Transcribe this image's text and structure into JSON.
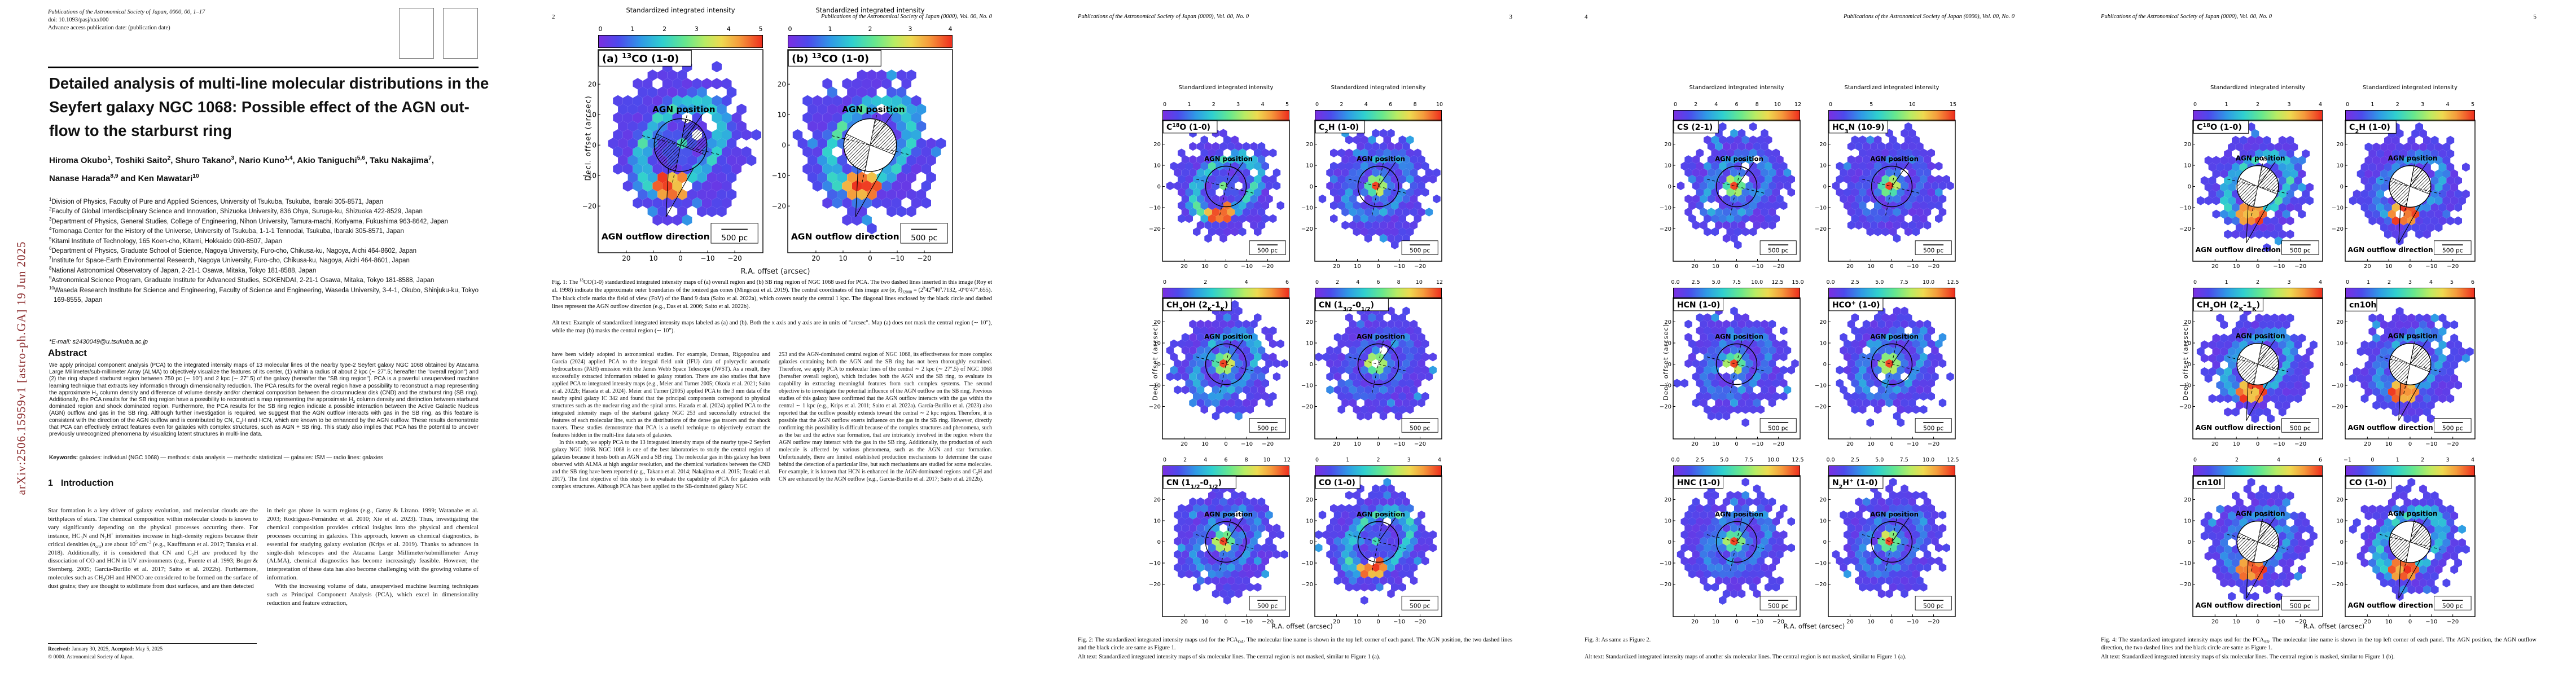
{
  "arxiv_stamp": {
    "text": "arXiv:2506.15959v1  [astro-ph.GA]  19 Jun 2025",
    "color": "#8a2a2b"
  },
  "running_head": "Publications of the Astronomical Society of Japan (0000), Vol. 00, No. 0",
  "colors": {
    "map_purple": "#7a2fe2",
    "map_cyan": "#2fd0cf",
    "map_green": "#67e88d",
    "map_red": "#ee2e1e",
    "stamp_red": "#8a2a2b"
  },
  "figures_common": {
    "cb_title": "Standardized integrated intensity",
    "xlabel": "R.A. offset (arcsec)",
    "ylabel": "Decl. offset (arcsec)",
    "agn_label": "AGN position",
    "outflow_label": "AGN outflow direction",
    "scalebar_label": "500 pc",
    "xticks": [
      "20",
      "10",
      "0",
      "−10",
      "−20"
    ],
    "yticks": [
      "20",
      "10",
      "0",
      "−10",
      "−20"
    ]
  },
  "page1": {
    "header_lines": [
      "Publications of the Astronomical Society of Japan, 0000, 00, 1–17",
      "doi: 10.1093/pasj/xxx000",
      "Advance access publication date: (publication date)"
    ],
    "title_lines": [
      "Detailed analysis of multi-line molecular distributions in the",
      "Seyfert galaxy NGC 1068:  Possible effect of the AGN out-",
      "flow to the starburst ring"
    ],
    "authors_lines": [
      "Hiroma Okubo^1^, Toshiki Saito^2^, Shuro Takano^3^, Nario Kuno^1,4^, Akio Taniguchi^5,6^, Taku Nakajima^7^,",
      "Nanase Harada^8,9^ and Ken Mawatari^10^"
    ],
    "affiliations": [
      "^1^Division of Physics, Faculty of Pure and Applied Sciences, University of Tsukuba, Tsukuba, Ibaraki 305-8571, Japan",
      "^2^Faculty of Global Interdisciplinary Science and Innovation, Shizuoka University, 836 Ohya, Suruga-ku, Shizuoka 422-8529, Japan",
      "^3^Department of Physics, General Studies, College of Engineering, Nihon University, Tamura-machi, Koriyama, Fukushima 963-8642, Japan",
      "^4^Tomonaga Center for the History of the Universe, University of Tsukuba, 1-1-1 Tennodai, Tsukuba, Ibaraki 305-8571, Japan",
      "^5^Kitami Institute of Technology, 165 Koen-cho, Kitami, Hokkaido 090-8507, Japan",
      "^6^Department of Physics, Graduate School of Science, Nagoya University, Furo-cho, Chikusa-ku, Nagoya, Aichi 464-8602, Japan",
      "^7^Institute for Space-Earth Environmental Research, Nagoya University, Furo-cho, Chikusa-ku, Nagoya, Aichi 464-8601, Japan",
      "^8^National Astronomical Observatory of Japan, 2-21-1 Osawa, Mitaka, Tokyo 181-8588, Japan",
      "^9^Astronomical Science Program, Graduate Institute for Advanced Studies, SOKENDAI, 2-21-1 Osawa, Mitaka, Tokyo 181-8588, Japan",
      "^10^Waseda Research Institute for Science and Engineering, Faculty of Science and Engineering, Waseda University, 3-4-1, Okubo, Shinjuku-ku, Tokyo 169-8555, Japan"
    ],
    "email": "*E-mail: s2430049@u.tsukuba.ac.jp",
    "abstract_title": "Abstract",
    "abstract": "We apply principal component analysis (PCA) to the integrated intensity maps of 13 molecular lines of the nearby type-2 Seyfert galaxy NGC 1068 obtained by Atacama Large Millimeter/sub-millimeter Array (ALMA) to objectively visualize the features of its center, (1) within a radius of about 2 kpc (∼ 27″.5; hereafter the \"overall region\") and (2) the ring shaped starburst region between 750 pc (∼ 10″) and 2 kpc (∼ 27″.5) of the galaxy (hereafter the \"SB ring region\"). PCA is a powerful unsupervised machine learning technique that extracts key information through dimensionality reduction. The PCA results for the overall region have a possibility to reconstruct a map representing the approximate H~2~ column density and difference of volume density and/or chemical composition between the circumnuclear disk (CND) and the starburst ring (SB ring). Additionally, the PCA results for the SB ring region have a possibility to reconstruct a map representing the approximate H~2~ column density and distinction between starburst dominated region and shock dominated region. Furthermore, the PCA results for the SB ring region indicate a possible interaction between the Active Galactic Nucleus (AGN) outflow and gas in the SB ring. Although further investigation is required, we suggest that the AGN outflow interacts with gas in the SB ring, as this feature is consistent with the direction of the AGN outflow and is contributed by CN, C~2~H and HCN, which are known to be enhanced by the AGN outflow. These results demonstrate that PCA can effectively extract features even for galaxies with complex structures, such as AGN + SB ring. This study also implies that PCA has the potential to uncover previously unrecognized phenomena by visualizing latent structures in multi-line data.",
    "keywords": "*Keywords:* galaxies: individual (NGC 1068) — methods: data analysis — methods: statistical — galaxies: ISM — radio lines: galaxies",
    "intro_number": "1",
    "intro_title": "Introduction",
    "intro_left": [
      "Star formation is a key driver of galaxy evolution, and molecular clouds are the birthplaces of stars.  The chemical composition within molecular clouds is known to vary significantly depending on the physical processes occurring there.  For instance, HC~3~N and N~2~H^+^ intensities increase in high-density regions because their critical densities (%n%~crit~) are about 10^5^ cm^−3^ (e.g., Kauffmann et al. 2017; Tanaka et al. 2018).  Additionally, it is considered that CN and C~2~H are produced by the dissociation of CO and HCN in UV environments (e.g., Fuente et al. 1993; Boger & Sternberg. 2005; García-Burillo et al. 2017; Saito et al. 2022b).  Furthermore, molecules such as CH~3~OH and HNCO are considered to be formed on the surface of dust grains; they are thought to sublimate from dust surfaces, and are then detected"
    ],
    "intro_right": [
      "in their gas phase in warm regions (e.g., Garay & Lizano. 1999; Watanabe et al. 2003; Rodríguez-Fernández et al. 2010; Xie et al. 2023).  Thus, investigating the chemical composition provides critical insights into the physical and chemical processes occurring in galaxies.  This approach, known as chemical diagnostics, is essential for studying galaxy evolution (Krips et al. 2019).  Thanks to advances in single-dish telescopes and the Atacama Large Millimeter/submillimeter Array (ALMA), chemical diagnostics has become increasingly feasible.  However, the interpretation of these data has also become challenging with the growing volume of information.",
      "With the increasing volume of data, unsupervised machine learning techniques such as Principal Component Analysis (PCA), which excel in dimensionality reduction and feature extraction,"
    ],
    "footer_received": "*Received:* January 30, 2025, *Accepted:* May 5, 2025",
    "footer_copyright": "© 0000. Astronomical Society of Japan."
  },
  "page2": {
    "folio": "2",
    "caption": "Fig. 1: The ^13^CO(1-0) standardized integrated intensity maps of (a) overall region and (b) SB ring region of NGC 1068 used for PCA. The two dashed lines inserted in this image (Roy et al. 1998) indicate the approximate outer boundaries of the ionized gas cones (Mingozzi et al. 2019). The central coordinates of this image are (%α%, %δ%)~J2000~ = (2^h^42^m^40^s^.7132, -0°0′47″.655). The black circle marks the field of view (FoV) of the Band 9 data (Saito et al. 2022a), which covers nearly the central 1 kpc. The diagonal lines enclosed by the black circle and dashed lines represent the AGN outflow direction (e.g., Das et al.  2006; Saito et al. 2022b).",
    "caption_alt": "Alt text: Example of standardized integrated intensity maps labeled as (a) and (b). Both the x axis and y axis are in units of \"arcsec\". Map (a) does not mask the central region (∼ 10″), while the map (b) masks the central region (∼ 10″).",
    "body_left": [
      "have been widely adopted in astronomical studies.  For example, Donnan, Rigopoulou and García (2024) applied PCA to the integral field unit (IFU) data of polycyclic aromatic hydrocarbons (PAH) emission with the James Webb Space Telescope (JWST).  As a result, they successfully extracted information related to galaxy rotation.  There are also studies that have applied PCA to integrated intensity maps (e.g., Meier and Turner 2005; Okoda et al. 2021; Saito et al. 2022b; Harada et al. 2024).  Meier and Turner (2005) applied PCA to the 3 mm data of the nearby spiral galaxy IC 342 and found that the principal components correspond to physical structures such as the nuclear ring and the spiral arms.  Harada et al. (2024) applied PCA to the integrated intensity maps of the starburst galaxy NGC 253 and successfully extracted the features of each molecular line, such as the distributions of the dense gas tracers and the shock tracers.  These studies demonstrate that PCA is a useful technique to objectively extract the features hidden in the multi-line data sets of galaxies.",
      "In this study, we apply PCA to the 13 integrated intensity maps of the nearby type-2 Seyfert galaxy NGC 1068.  NGC 1068 is one of the best laboratories to study the central region of galaxies because it hosts both an AGN and a SB ring.  The molecular gas in this galaxy has been observed with ALMA at high angular resolution, and the chemical variations between the CND and the SB ring have been reported (e.g., Takano et al. 2014; Nakajima et al. 2015; Tosaki et al. 2017).  The first objective of this study is to evaluate the capability of PCA for galaxies with complex structures.  Although PCA has been applied to the SB-dominated galaxy NGC"
    ],
    "body_right": [
      "253 and the AGN-dominated central region of NGC 1068, its effectiveness for more complex galaxies containing both the AGN and the SB ring has not been thoroughly examined.  Therefore, we apply PCA to molecular lines of the central ∼ 2 kpc (∼ 27″.5) of NGC 1068 (hereafter overall region), which includes both the AGN and the SB ring, to evaluate its capability in extracting meaningful features from such complex systems.  The second objective is to investigate the potential influence of the AGN outflow on the SB ring.  Previous studies of this galaxy have confirmed that the AGN outflow interacts with the gas within the central ∼ 1 kpc (e.g., Krips et al. 2011; Saito et al. 2022a).  García-Burillo et al. (2023) also reported that the outflow possibly extends toward the central ∼ 2 kpc region.  Therefore, it is possible that the AGN outflow exerts influence on the gas in the SB ring.  However, directly confirming this possibility is difficult because of the complex structures and phenomena, such as the bar and the active star formation, that are intricately involved in the region where the AGN outflow may interact with the gas in the SB ring.  Additionally, the production of each molecule is affected by various phenomena, such as the AGN and star formation.  Unfortunately, there are limited established production mechanisms to determine the cause behind the detection of a particular line, but such mechanisms are studied for some molecules.  For example, it is known that HCN is enhanced in the AGN-dominated regions and C~2~H and CN are enhanced by the AGN outflow (e.g., García-Burillo et al. 2017; Saito et al. 2022b)."
    ],
    "panels": [
      {
        "label": "(a) ^13^CO (1-0)",
        "cb": [
          "0",
          "1",
          "2",
          "3",
          "4",
          "5"
        ],
        "cb_title": true,
        "masked": false,
        "center": "weak",
        "ring": 1.0,
        "hot": true,
        "outflow": true,
        "hatch": true,
        "seed": 1
      },
      {
        "label": "(b) ^13^CO (1-0)",
        "cb": [
          "0",
          "1",
          "2",
          "3",
          "4"
        ],
        "cb_title": true,
        "masked": true,
        "center": "none",
        "ring": 1.0,
        "hot": true,
        "outflow": true,
        "hatch": true,
        "seed": 2
      }
    ]
  },
  "page3": {
    "folio": "3",
    "caption": "Fig. 2: The standardized integrated intensity maps usd for the PCA~OA~. The molecular line name is shown in the top left corner of each panel. The AGN position, the two dashed lines and the black circle are same as Figure 1.",
    "caption_alt": "Alt text: Standardized integrated intensity maps of six molecular lines. The central region is not masked, similar to Figure 1 (a).",
    "panels": [
      {
        "label": "C^18^O (1-0)",
        "cb": [
          "0",
          "1",
          "2",
          "3",
          "4",
          "5"
        ],
        "cb_title": true,
        "masked": false,
        "center": "weak",
        "ring": 1.0,
        "hot": true,
        "outflow": false,
        "hatch": false,
        "seed": 3
      },
      {
        "label": "C~2~H (1-0)",
        "cb": [
          "0",
          "2",
          "4",
          "6",
          "8",
          "10"
        ],
        "cb_title": true,
        "masked": false,
        "center": "red",
        "ring": 0.55,
        "hot": false,
        "outflow": false,
        "hatch": false,
        "seed": 4
      },
      {
        "label": "CH~3~OH (2~%K%~-1~%K%~)",
        "cb": [
          "0",
          "2",
          "4",
          "6"
        ],
        "cb_title": false,
        "masked": false,
        "center": "red",
        "ring": 0.7,
        "hot": false,
        "outflow": false,
        "hatch": false,
        "seed": 5
      },
      {
        "label": "CN (1~3/2~-0~1/2~)",
        "cb": [
          "0",
          "2",
          "4",
          "6",
          "8",
          "10",
          "12"
        ],
        "cb_title": false,
        "masked": false,
        "center": "red",
        "ring": 0.35,
        "hot": false,
        "outflow": false,
        "hatch": false,
        "seed": 6
      },
      {
        "label": "CN (1~1/2~-0~1/2~)",
        "cb": [
          "0",
          "2",
          "4",
          "6",
          "8",
          "10",
          "12"
        ],
        "cb_title": false,
        "masked": false,
        "center": "red",
        "ring": 0.5,
        "hot": false,
        "outflow": false,
        "hatch": false,
        "seed": 7
      },
      {
        "label": "CO (1-0)",
        "cb": [
          "0",
          "1",
          "2",
          "3",
          "4"
        ],
        "cb_title": false,
        "masked": false,
        "center": "weak",
        "ring": 1.0,
        "hot": true,
        "outflow": false,
        "hatch": false,
        "seed": 8
      }
    ]
  },
  "page4": {
    "folio": "4",
    "caption": "Fig. 3: As same as Figure 2.",
    "caption_alt": "Alt text: Standardized integrated intensity maps of another six molecular lines. The central region is not masked, similar to Figure 1 (a).",
    "panels": [
      {
        "label": "CS (2-1)",
        "cb": [
          "0",
          "2",
          "4",
          "6",
          "8",
          "10",
          "12"
        ],
        "cb_title": true,
        "masked": false,
        "center": "red",
        "ring": 0.6,
        "hot": false,
        "outflow": false,
        "hatch": false,
        "seed": 9
      },
      {
        "label": "HC~3~N (10-9)",
        "cb": [
          "0",
          "5",
          "10",
          "15"
        ],
        "cb_title": true,
        "masked": false,
        "center": "red",
        "ring": 0.3,
        "hot": false,
        "outflow": false,
        "hatch": false,
        "seed": 10
      },
      {
        "label": "HCN (1-0)",
        "cb": [
          "0.0",
          "2.5",
          "5.0",
          "7.5",
          "10.0",
          "12.5",
          "15.0"
        ],
        "cb_title": false,
        "masked": false,
        "center": "red",
        "ring": 0.45,
        "hot": false,
        "outflow": false,
        "hatch": false,
        "seed": 11
      },
      {
        "label": "HCO^+^ (1-0)",
        "cb": [
          "0.0",
          "2.5",
          "5.0",
          "7.5",
          "10.0",
          "12.5"
        ],
        "cb_title": false,
        "masked": false,
        "center": "red",
        "ring": 0.55,
        "hot": false,
        "outflow": false,
        "hatch": false,
        "seed": 12
      },
      {
        "label": "HNC (1-0)",
        "cb": [
          "0.0",
          "2.5",
          "5.0",
          "7.5",
          "10.0",
          "12.5"
        ],
        "cb_title": false,
        "masked": false,
        "center": "red",
        "ring": 0.5,
        "hot": false,
        "outflow": false,
        "hatch": false,
        "seed": 13
      },
      {
        "label": "N~2~H^+^ (1-0)",
        "cb": [
          "0.0",
          "2.5",
          "5.0",
          "7.5",
          "10.0",
          "12.5"
        ],
        "cb_title": false,
        "masked": false,
        "center": "red",
        "ring": 0.45,
        "hot": false,
        "outflow": false,
        "hatch": false,
        "seed": 14
      }
    ]
  },
  "page5": {
    "folio": "5",
    "caption": "Fig. 4: The standardized integrated intensity maps usd for the PCA~SB~. The molecular line name is shown in the top left corner of each panel. The AGN position, the AGN outflow direction, the two dashed lines and the black circle are same as Figure 1.",
    "caption_alt": "Alt text: Standardized integrated intensity maps of six molecular lines. The central region is masked, similar to Figure 1 (b).",
    "panels": [
      {
        "label": "C^18^O (1-0)",
        "cb": [
          "0",
          "1",
          "2",
          "3",
          "4"
        ],
        "cb_title": true,
        "masked": true,
        "center": "none",
        "ring": 1.0,
        "hot": true,
        "outflow": true,
        "hatch": true,
        "seed": 15
      },
      {
        "label": "C~2~H (1-0)",
        "cb": [
          "0",
          "1",
          "2",
          "3",
          "4",
          "5"
        ],
        "cb_title": true,
        "masked": true,
        "center": "none",
        "ring": 0.6,
        "hot": true,
        "outflow": true,
        "hatch": true,
        "seed": 16
      },
      {
        "label": "CH~3~OH (2~%K%~-1~%K%~)",
        "cb": [
          "0",
          "1",
          "2",
          "3",
          "4"
        ],
        "cb_title": false,
        "masked": true,
        "center": "none",
        "ring": 0.8,
        "hot": true,
        "outflow": true,
        "hatch": true,
        "seed": 17
      },
      {
        "label": "cn10h",
        "cb": [
          "0",
          "1",
          "2",
          "3",
          "4",
          "5",
          "6"
        ],
        "cb_title": false,
        "masked": true,
        "center": "none",
        "ring": 0.6,
        "hot": true,
        "outflow": true,
        "hatch": true,
        "seed": 18
      },
      {
        "label": "cn10l",
        "cb": [
          "0",
          "2",
          "4",
          "6"
        ],
        "cb_title": false,
        "masked": true,
        "center": "none",
        "ring": 0.55,
        "hot": true,
        "outflow": true,
        "hatch": true,
        "seed": 19
      },
      {
        "label": "CO (1-0)",
        "cb": [
          "−1",
          "0",
          "1",
          "2",
          "3",
          "4"
        ],
        "cb_title": false,
        "masked": true,
        "center": "none",
        "ring": 1.0,
        "hot": true,
        "outflow": true,
        "hatch": true,
        "seed": 20
      }
    ]
  }
}
